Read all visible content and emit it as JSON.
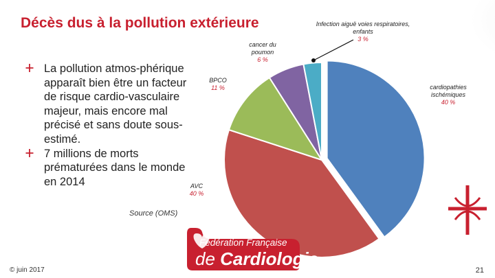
{
  "slide": {
    "title": "Décès dus à la pollution extérieure",
    "bullets": [
      "La pollution atmos-phérique apparaît bien être un facteur de risque cardio-vasculaire majeur, mais encore mal précisé et sans doute sous-estimé.",
      "7 millions de morts prématurées dans le monde en 2014"
    ],
    "source": "Source (OMS)",
    "date": "© juin 2017",
    "page_number": "21",
    "logo": {
      "line1": "Fédération Française",
      "line2_a": "de ",
      "line2_b": "Cardiologie"
    }
  },
  "colors": {
    "accent": "#c8202f",
    "logo_red": "#c8202f"
  },
  "chart_data": {
    "type": "pie",
    "title": "",
    "slices": [
      {
        "label": "cardiopathies ischémiques",
        "value": 40,
        "value_label": "40 %",
        "color": "#4f81bd"
      },
      {
        "label": "AVC",
        "value": 40,
        "value_label": "40 %",
        "color": "#c0504d"
      },
      {
        "label": "BPCO",
        "value": 11,
        "value_label": "11 %",
        "color": "#9bbb59"
      },
      {
        "label": "cancer du poumon",
        "value": 6,
        "value_label": "6 %",
        "color": "#8064a2"
      },
      {
        "label": "Infection aiguë voies respiratoires, enfants",
        "value": 3,
        "value_label": "3 %",
        "color": "#4bacc6"
      }
    ]
  }
}
